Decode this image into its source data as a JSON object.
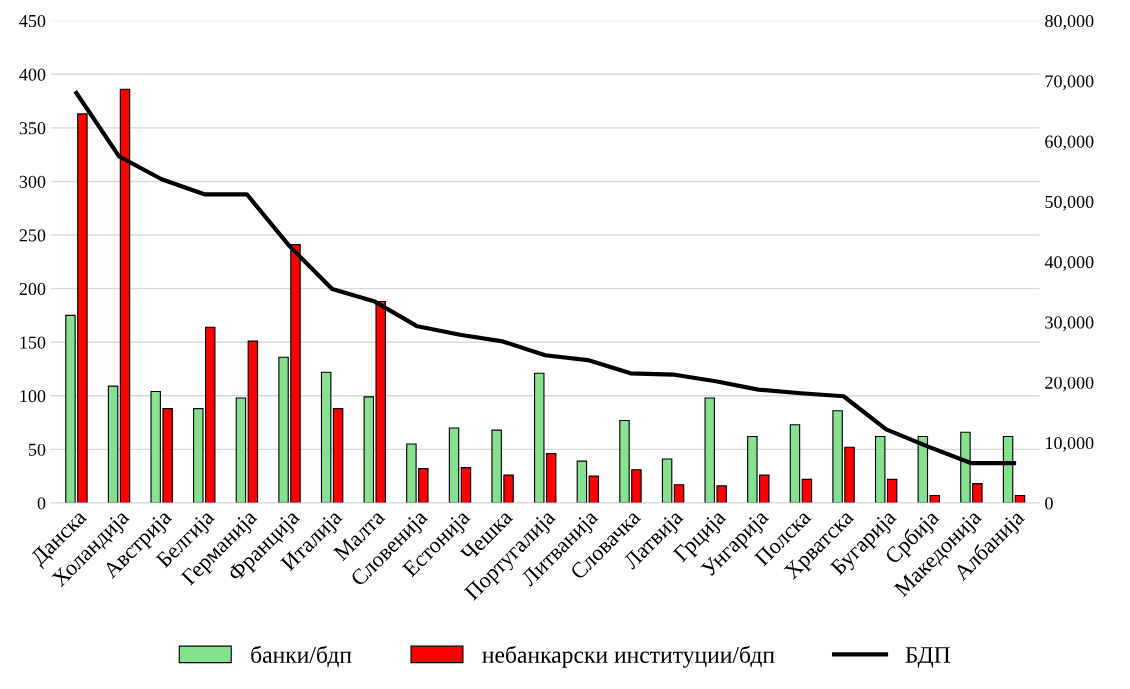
{
  "chart_data": {
    "type": "bar",
    "categories": [
      "Данска",
      "Холандија",
      "Австрија",
      "Белгија",
      "Германија",
      "Франција",
      "Италија",
      "Малта",
      "Словенија",
      "Естонија",
      "Чешка",
      "Португалија",
      "Литванија",
      "Словачка",
      "Латвија",
      "Грција",
      "Унгарија",
      "Полска",
      "Хрватска",
      "Бугарија",
      "Србија",
      "Македонија",
      "Албанија"
    ],
    "series": [
      {
        "name": "банки/бдп",
        "color": "#85e08f",
        "values": [
          175,
          109,
          104,
          88,
          98,
          136,
          122,
          99,
          55,
          70,
          68,
          121,
          39,
          77,
          41,
          98,
          62,
          73,
          86,
          62,
          62,
          66,
          62
        ]
      },
      {
        "name": "небанкарски институции/бдп",
        "color": "#ff0000",
        "values": [
          363,
          386,
          88,
          164,
          151,
          241,
          88,
          188,
          32,
          33,
          26,
          46,
          25,
          31,
          17,
          16,
          26,
          22,
          52,
          22,
          7,
          18,
          7
        ]
      },
      {
        "name": "БДП",
        "type": "line",
        "axis": "y2",
        "color": "#000000",
        "values": [
          68000,
          57500,
          53700,
          51200,
          51200,
          42600,
          35500,
          33400,
          29300,
          27900,
          26800,
          24500,
          23700,
          21500,
          21300,
          20200,
          18800,
          18200,
          17700,
          12200,
          9300,
          6600,
          6600
        ]
      }
    ],
    "ylim": [
      0,
      450
    ],
    "yticks": [
      0,
      50,
      100,
      150,
      200,
      250,
      300,
      350,
      400,
      450
    ],
    "y2lim": [
      0,
      80000
    ],
    "y2ticks": [
      {
        "value": 0,
        "label": "0"
      },
      {
        "value": 10000,
        "label": "10,000"
      },
      {
        "value": 20000,
        "label": "20,000"
      },
      {
        "value": 30000,
        "label": "30,000"
      },
      {
        "value": 40000,
        "label": "40,000"
      },
      {
        "value": 50000,
        "label": "50,000"
      },
      {
        "value": 60000,
        "label": "60,000"
      },
      {
        "value": 70000,
        "label": "70,000"
      },
      {
        "value": 80000,
        "label": "80,000"
      }
    ],
    "grid": "y",
    "legend": "bottom",
    "marker": "none",
    "line_style": "solid"
  }
}
